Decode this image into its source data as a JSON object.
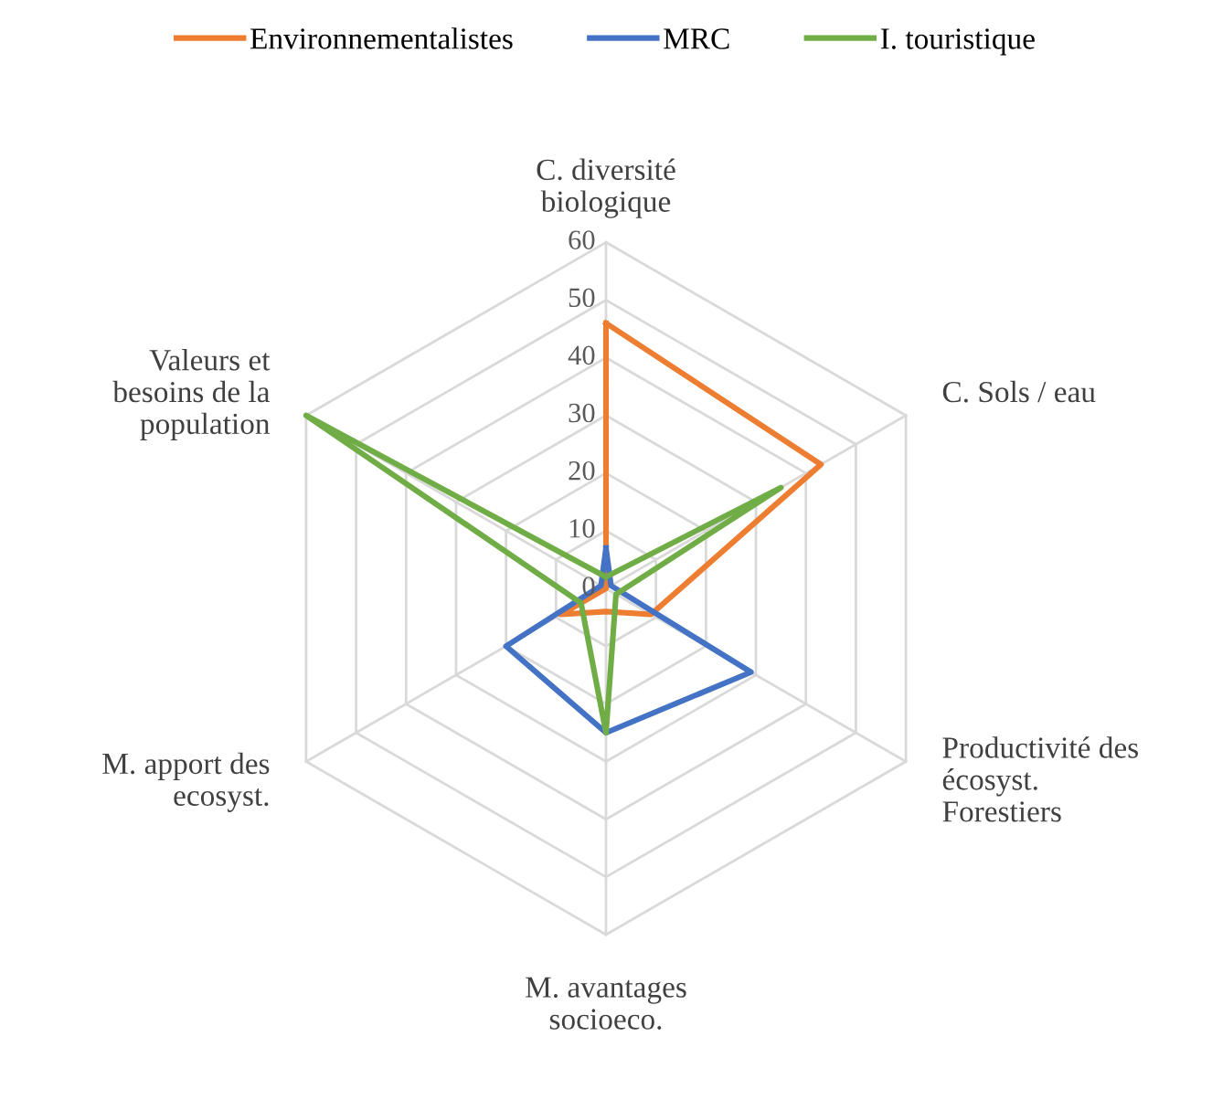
{
  "chart_data": {
    "type": "radar",
    "categories": [
      "C. diversité biologique",
      "C. Sols / eau",
      "Productivité des écosyst. Forestiers",
      "M. avantages socioeco.",
      "M. apport des ecosyst.",
      "Valeurs et besoins de la population"
    ],
    "series": [
      {
        "name": "Environnementalistes",
        "color": "#ed7d31",
        "values": [
          46,
          43,
          9,
          4,
          9,
          0
        ]
      },
      {
        "name": "MRC",
        "color": "#4472c4",
        "values": [
          7,
          1,
          29,
          25,
          20,
          1
        ]
      },
      {
        "name": "I. touristique",
        "color": "#70ad47",
        "values": [
          2,
          35,
          2,
          25,
          5,
          60
        ]
      }
    ],
    "ylim": [
      0,
      60
    ],
    "yticks": [
      0,
      10,
      20,
      30,
      40,
      50,
      60
    ],
    "grid": true,
    "legend": "top",
    "marker": "none"
  }
}
